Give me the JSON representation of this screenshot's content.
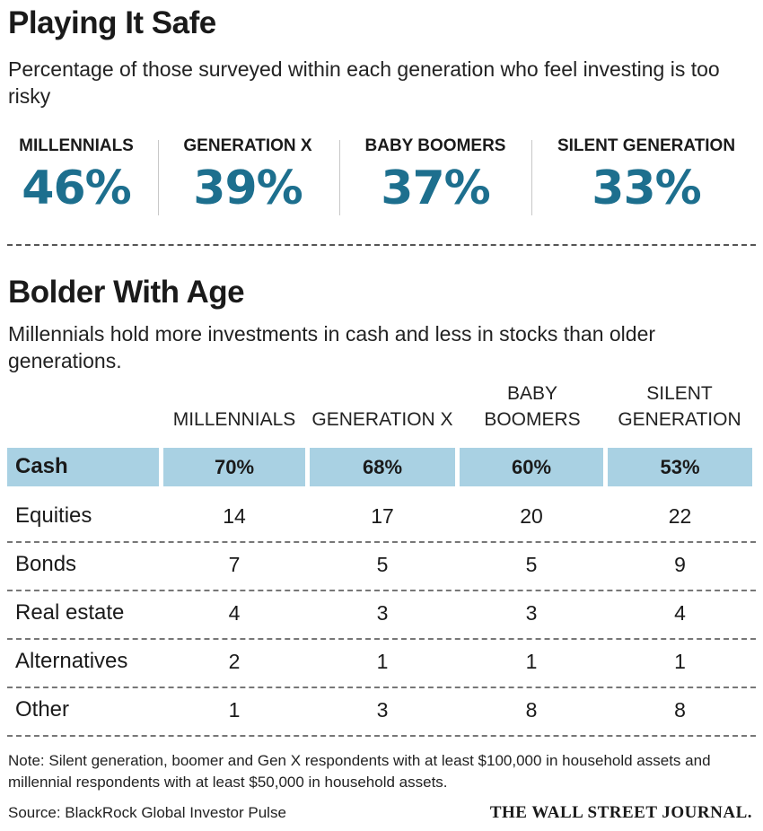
{
  "chart_data": [
    {
      "type": "table",
      "title": "Playing It Safe",
      "subtitle": "Percentage of those surveyed within each generation who feel investing is too risky",
      "categories": [
        "MILLENNIALS",
        "GENERATION X",
        "BABY BOOMERS",
        "SILENT GENERATION"
      ],
      "values": [
        46,
        39,
        37,
        33
      ],
      "value_labels": [
        "46%",
        "39%",
        "37%",
        "33%"
      ]
    },
    {
      "type": "table",
      "title": "Bolder With Age",
      "subtitle": "Millennials hold more investments in cash and less in stocks than older generations.",
      "columns": [
        {
          "line1": "",
          "line2": "MILLENNIALS"
        },
        {
          "line1": "",
          "line2": "GENERATION X"
        },
        {
          "line1": "BABY",
          "line2": "BOOMERS"
        },
        {
          "line1": "SILENT",
          "line2": "GENERATION"
        }
      ],
      "rows": [
        {
          "label": "Cash",
          "values": [
            "70%",
            "68%",
            "60%",
            "53%"
          ]
        },
        {
          "label": "Equities",
          "values": [
            "14",
            "17",
            "20",
            "22"
          ]
        },
        {
          "label": "Bonds",
          "values": [
            "7",
            "5",
            "5",
            "9"
          ]
        },
        {
          "label": "Real estate",
          "values": [
            "4",
            "3",
            "3",
            "4"
          ]
        },
        {
          "label": "Alternatives",
          "values": [
            "2",
            "1",
            "1",
            "1"
          ]
        },
        {
          "label": "Other",
          "values": [
            "1",
            "3",
            "8",
            "8"
          ]
        }
      ]
    }
  ],
  "footer": {
    "note": "Note: Silent generation, boomer and Gen X respondents with at least $100,000 in household assets and millennial respondents with at least $50,000 in household assets.",
    "source": "Source:  BlackRock Global Investor Pulse",
    "brand": "THE WALL STREET JOURNAL."
  },
  "colors": {
    "accent": "#1d6f8e",
    "cash_highlight": "#a9d1e3"
  }
}
